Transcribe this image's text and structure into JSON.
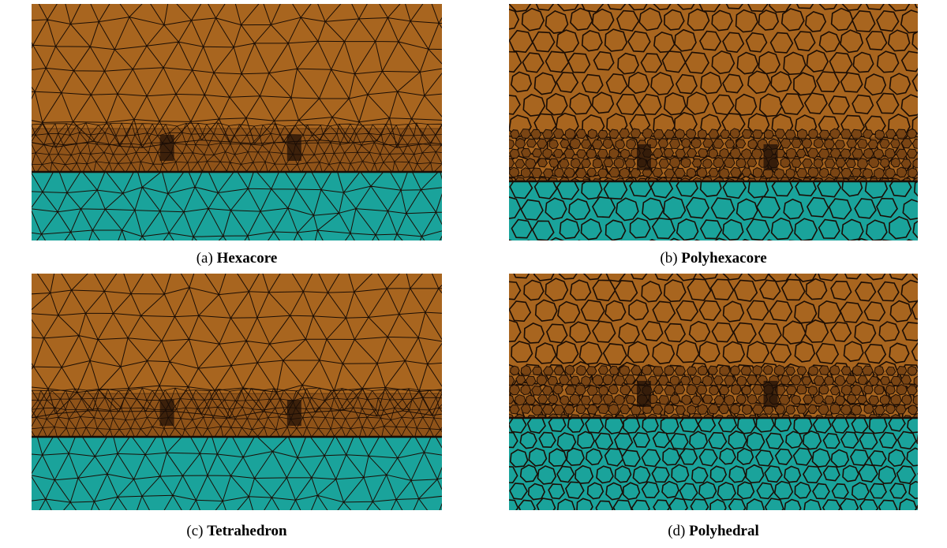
{
  "figure": {
    "colors": {
      "upper_region": "#a8651f",
      "upper_region_dark": "#7a4514",
      "lower_region": "#1aa39b",
      "mesh_lines": "#1a0d05",
      "background": "#ffffff"
    },
    "panels": [
      {
        "id": "a",
        "label": "(a)",
        "name": "Hexacore",
        "mesh": "triangular",
        "lower_fraction": 0.29
      },
      {
        "id": "b",
        "label": "(b)",
        "name": "Polyhexacore",
        "mesh": "polygonal",
        "lower_fraction": 0.25
      },
      {
        "id": "c",
        "label": "(c)",
        "name": "Tetrahedron",
        "mesh": "triangular",
        "lower_fraction": 0.31
      },
      {
        "id": "d",
        "label": "(d)",
        "name": "Polyhedral",
        "mesh": "polygonal",
        "lower_fraction": 0.39
      }
    ]
  }
}
